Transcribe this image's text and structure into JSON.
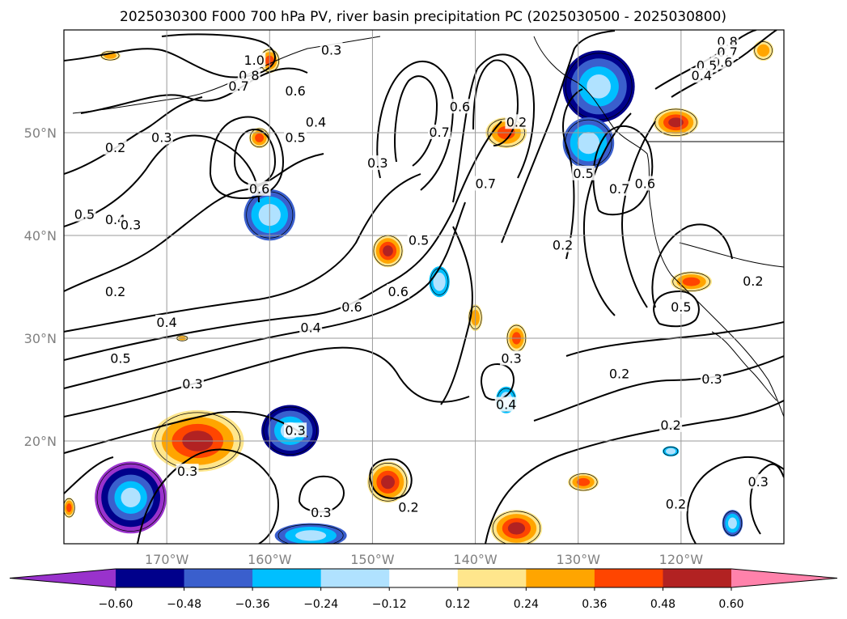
{
  "chart_data": {
    "type": "contour-map",
    "title": "2025030300 F000 700 hPa PV, river basin precipitation PC (2025030500 - 2025030800)",
    "map": {
      "lon_range": [
        -180,
        -110
      ],
      "lat_range": [
        10,
        60
      ],
      "lon_ticks": [
        -170,
        -160,
        -150,
        -140,
        -130,
        -120
      ],
      "lon_tick_labels": [
        "170°W",
        "160°W",
        "150°W",
        "140°W",
        "130°W",
        "120°W"
      ],
      "lat_ticks": [
        20,
        30,
        40,
        50
      ],
      "lat_tick_labels": [
        "20°N",
        "30°N",
        "40°N",
        "50°N"
      ],
      "grid": true
    },
    "colorbar": {
      "ticks": [
        "−0.60",
        "−0.48",
        "−0.36",
        "−0.24",
        "−0.12",
        "0.12",
        "0.24",
        "0.36",
        "0.48",
        "0.60"
      ],
      "colors": [
        "#9932cc",
        "#00008b",
        "#3a5fcd",
        "#00bfff",
        "#b0e2ff",
        "#ffffff",
        "#ffe68c",
        "#ffa500",
        "#ff4500",
        "#b22222",
        "#ff82ab"
      ],
      "extend": "both"
    },
    "contour_labels": [
      {
        "text": "1.0",
        "lon": -161.5,
        "lat": 57.0
      },
      {
        "text": "0.8",
        "lon": -162.0,
        "lat": 55.5
      },
      {
        "text": "0.7",
        "lon": -163.0,
        "lat": 54.5
      },
      {
        "text": "0.3",
        "lon": -154.0,
        "lat": 58.0
      },
      {
        "text": "0.6",
        "lon": -157.5,
        "lat": 54.0
      },
      {
        "text": "0.4",
        "lon": -155.5,
        "lat": 51.0
      },
      {
        "text": "0.5",
        "lon": -157.5,
        "lat": 49.5
      },
      {
        "text": "0.6",
        "lon": -161.0,
        "lat": 44.5
      },
      {
        "text": "0.2",
        "lon": -175.0,
        "lat": 48.5
      },
      {
        "text": "0.3",
        "lon": -170.5,
        "lat": 49.5
      },
      {
        "text": "0.3",
        "lon": -149.5,
        "lat": 47.0
      },
      {
        "text": "0.6",
        "lon": -141.5,
        "lat": 52.5
      },
      {
        "text": "0.7",
        "lon": -143.5,
        "lat": 50.0
      },
      {
        "text": "0.7",
        "lon": -139.0,
        "lat": 45.0
      },
      {
        "text": "0.2",
        "lon": -136.0,
        "lat": 51.0
      },
      {
        "text": "0.5",
        "lon": -129.5,
        "lat": 46.0
      },
      {
        "text": "0.7",
        "lon": -126.0,
        "lat": 44.5
      },
      {
        "text": "0.6",
        "lon": -123.5,
        "lat": 45.0
      },
      {
        "text": "0.8",
        "lon": -115.5,
        "lat": 58.8
      },
      {
        "text": "0.7",
        "lon": -115.5,
        "lat": 57.8
      },
      {
        "text": "0.6",
        "lon": -116.0,
        "lat": 56.8
      },
      {
        "text": "0.5",
        "lon": -117.5,
        "lat": 56.5
      },
      {
        "text": "0.4",
        "lon": -118.0,
        "lat": 55.5
      },
      {
        "text": "0.5",
        "lon": -178.0,
        "lat": 42.0
      },
      {
        "text": "0.4",
        "lon": -175.0,
        "lat": 41.5
      },
      {
        "text": "0.3",
        "lon": -173.5,
        "lat": 41.0
      },
      {
        "text": "0.2",
        "lon": -175.0,
        "lat": 34.5
      },
      {
        "text": "0.4",
        "lon": -170.0,
        "lat": 31.5
      },
      {
        "text": "0.5",
        "lon": -174.5,
        "lat": 28.0
      },
      {
        "text": "0.3",
        "lon": -167.5,
        "lat": 25.5
      },
      {
        "text": "0.4",
        "lon": -156.0,
        "lat": 31.0
      },
      {
        "text": "0.6",
        "lon": -152.0,
        "lat": 33.0
      },
      {
        "text": "0.6",
        "lon": -147.5,
        "lat": 34.5
      },
      {
        "text": "0.5",
        "lon": -145.5,
        "lat": 39.5
      },
      {
        "text": "0.2",
        "lon": -131.5,
        "lat": 39.0
      },
      {
        "text": "0.3",
        "lon": -136.5,
        "lat": 28.0
      },
      {
        "text": "0.4",
        "lon": -137.0,
        "lat": 23.5
      },
      {
        "text": "0.3",
        "lon": -168.0,
        "lat": 17.0
      },
      {
        "text": "0.3",
        "lon": -155.0,
        "lat": 13.0
      },
      {
        "text": "0.2",
        "lon": -146.5,
        "lat": 13.5
      },
      {
        "text": "0.2",
        "lon": -126.0,
        "lat": 26.5
      },
      {
        "text": "0.2",
        "lon": -121.0,
        "lat": 21.5
      },
      {
        "text": "0.2",
        "lon": -120.5,
        "lat": 13.8
      },
      {
        "text": "0.3",
        "lon": -117.0,
        "lat": 26.0
      },
      {
        "text": "0.3",
        "lon": -112.5,
        "lat": 16.0
      },
      {
        "text": "0.5",
        "lon": -120.0,
        "lat": 33.0
      },
      {
        "text": "0.2",
        "lon": -113.0,
        "lat": 35.5
      },
      {
        "text": "0.3",
        "lon": -157.5,
        "lat": 21.0
      }
    ],
    "precip_pc_anomalies": [
      {
        "lon": -173.5,
        "lat": 14.5,
        "rx": 3.5,
        "ry": 3.5,
        "value": -0.6
      },
      {
        "lon": -158.0,
        "lat": 21.0,
        "rx": 2.8,
        "ry": 2.5,
        "value": -0.48
      },
      {
        "lon": -156.0,
        "lat": 10.8,
        "rx": 3.5,
        "ry": 1.2,
        "value": -0.36
      },
      {
        "lon": -160.0,
        "lat": 42.0,
        "rx": 2.5,
        "ry": 2.5,
        "value": -0.36
      },
      {
        "lon": -128.0,
        "lat": 54.5,
        "rx": 3.5,
        "ry": 3.5,
        "value": -0.48
      },
      {
        "lon": -129.0,
        "lat": 49.0,
        "rx": 2.5,
        "ry": 2.5,
        "value": -0.36
      },
      {
        "lon": -143.5,
        "lat": 35.5,
        "rx": 1.0,
        "ry": 1.5,
        "value": -0.24
      },
      {
        "lon": -137.0,
        "lat": 24.0,
        "rx": 1.0,
        "ry": 1.3,
        "value": -0.24
      },
      {
        "lon": -115.0,
        "lat": 12.0,
        "rx": 1.0,
        "ry": 1.3,
        "value": -0.36
      },
      {
        "lon": -121.0,
        "lat": 19.0,
        "rx": 0.8,
        "ry": 0.5,
        "value": -0.24
      },
      {
        "lon": -167.0,
        "lat": 20.0,
        "rx": 4.5,
        "ry": 3.0,
        "value": 0.48
      },
      {
        "lon": -148.5,
        "lat": 38.5,
        "rx": 1.5,
        "ry": 1.6,
        "value": 0.48
      },
      {
        "lon": -148.5,
        "lat": 16.0,
        "rx": 2.0,
        "ry": 2.0,
        "value": 0.48
      },
      {
        "lon": -136.0,
        "lat": 11.5,
        "rx": 2.5,
        "ry": 1.8,
        "value": 0.48
      },
      {
        "lon": -137.0,
        "lat": 50.0,
        "rx": 2.0,
        "ry": 1.5,
        "value": 0.36
      },
      {
        "lon": -120.5,
        "lat": 51.0,
        "rx": 2.2,
        "ry": 1.4,
        "value": 0.48
      },
      {
        "lon": -119.0,
        "lat": 35.5,
        "rx": 2.0,
        "ry": 1.0,
        "value": 0.36
      },
      {
        "lon": -136.0,
        "lat": 30.0,
        "rx": 1.0,
        "ry": 1.4,
        "value": 0.36
      },
      {
        "lon": -140.0,
        "lat": 32.0,
        "rx": 0.7,
        "ry": 1.3,
        "value": 0.24
      },
      {
        "lon": -129.5,
        "lat": 16.0,
        "rx": 1.5,
        "ry": 0.9,
        "value": 0.36
      },
      {
        "lon": -161.0,
        "lat": 49.5,
        "rx": 1.0,
        "ry": 1.0,
        "value": 0.36
      },
      {
        "lon": -160.0,
        "lat": 57.0,
        "rx": 1.0,
        "ry": 1.2,
        "value": 0.36
      },
      {
        "lon": -112.0,
        "lat": 58.0,
        "rx": 1.0,
        "ry": 1.0,
        "value": 0.24
      },
      {
        "lon": -179.5,
        "lat": 13.5,
        "rx": 0.6,
        "ry": 1.0,
        "value": 0.36
      },
      {
        "lon": -175.5,
        "lat": 57.5,
        "rx": 1.0,
        "ry": 0.5,
        "value": 0.24
      },
      {
        "lon": -168.5,
        "lat": 30.0,
        "rx": 0.6,
        "ry": 0.3,
        "value": 0.24
      }
    ]
  }
}
